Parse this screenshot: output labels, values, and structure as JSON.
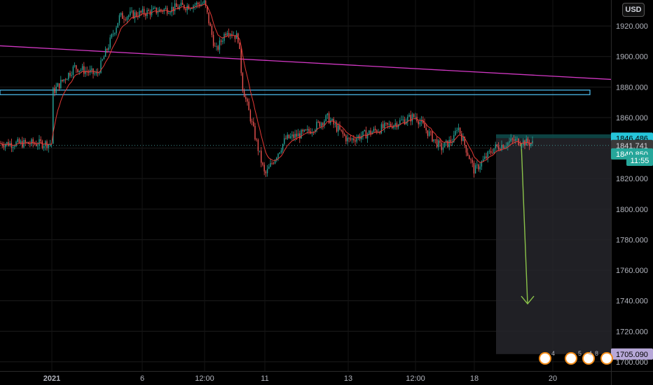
{
  "currency": "USD",
  "chart_data": {
    "type": "candlestick",
    "symbol_currency": "USD",
    "y_axis": {
      "ticks": [
        1920,
        1900,
        1880,
        1860,
        1840,
        1820,
        1800,
        1780,
        1760,
        1740,
        1720,
        1700
      ],
      "ylim": [
        1694,
        1937
      ],
      "decimals": 3
    },
    "x_axis": {
      "ticks": [
        "2021",
        "6",
        "12:00",
        "11",
        "13",
        "12:00",
        "18",
        "20"
      ]
    },
    "price_path": [
      {
        "t": "2021-01-04",
        "p": 1876
      },
      {
        "t": "2021-01-04 12:00",
        "p": 1893
      },
      {
        "t": "2021-01-05",
        "p": 1888
      },
      {
        "t": "2021-01-05 12:00",
        "p": 1926
      },
      {
        "t": "2021-01-06 12:00",
        "p": 1935
      },
      {
        "t": "2021-01-07",
        "p": 1903
      },
      {
        "t": "2021-01-07 12:00",
        "p": 1918
      },
      {
        "t": "2021-01-08",
        "p": 1912
      },
      {
        "t": "2021-01-08 12:00",
        "p": 1880
      },
      {
        "t": "2021-01-11",
        "p": 1822
      },
      {
        "t": "2021-01-11 12:00",
        "p": 1846
      },
      {
        "t": "2021-01-12",
        "p": 1850
      },
      {
        "t": "2021-01-12 12:00",
        "p": 1860
      },
      {
        "t": "2021-01-13",
        "p": 1845
      },
      {
        "t": "2021-01-13 12:00",
        "p": 1861
      },
      {
        "t": "2021-01-14",
        "p": 1850
      },
      {
        "t": "2021-01-14 12:00",
        "p": 1840
      },
      {
        "t": "2021-01-15",
        "p": 1846
      },
      {
        "t": "2021-01-15 12:00",
        "p": 1855
      },
      {
        "t": "2021-01-18",
        "p": 1825
      },
      {
        "t": "2021-01-18 12:00",
        "p": 1840
      },
      {
        "t": "2021-01-19",
        "p": 1845
      },
      {
        "t": "2021-01-19 12:00",
        "p": 1843
      }
    ],
    "resistance_line": {
      "color": "#d238c4",
      "from": {
        "t": "2021-01-01",
        "p": 1907
      },
      "to": {
        "t": "2021-01-20 12:00",
        "p": 1885
      }
    },
    "support_zone": {
      "color": "#4fc3f7",
      "top": 1878,
      "bottom": 1875
    },
    "projection": {
      "type": "short-position",
      "entry": 1846.486,
      "target": 1705.09,
      "arrow_color": "#8bc34a",
      "arrow_from": 1843,
      "arrow_to": 1738
    },
    "price_labels": [
      {
        "value": "1846.486",
        "bg": "#26c6da",
        "fg": "#000000"
      },
      {
        "value": "1841.741",
        "bg": "#3a3a3a",
        "fg": "#d1d4dc"
      },
      {
        "value": "1840.850",
        "bg": "#26a69a",
        "fg": "#ffffff"
      },
      {
        "value": "11:55",
        "bg": "#26a69a",
        "fg": "#ffffff"
      },
      {
        "value": "1705.090",
        "bg": "#b7a8d8",
        "fg": "#000000"
      }
    ],
    "event_badges": [
      "4",
      "5",
      "4",
      "8"
    ],
    "grid": true
  }
}
